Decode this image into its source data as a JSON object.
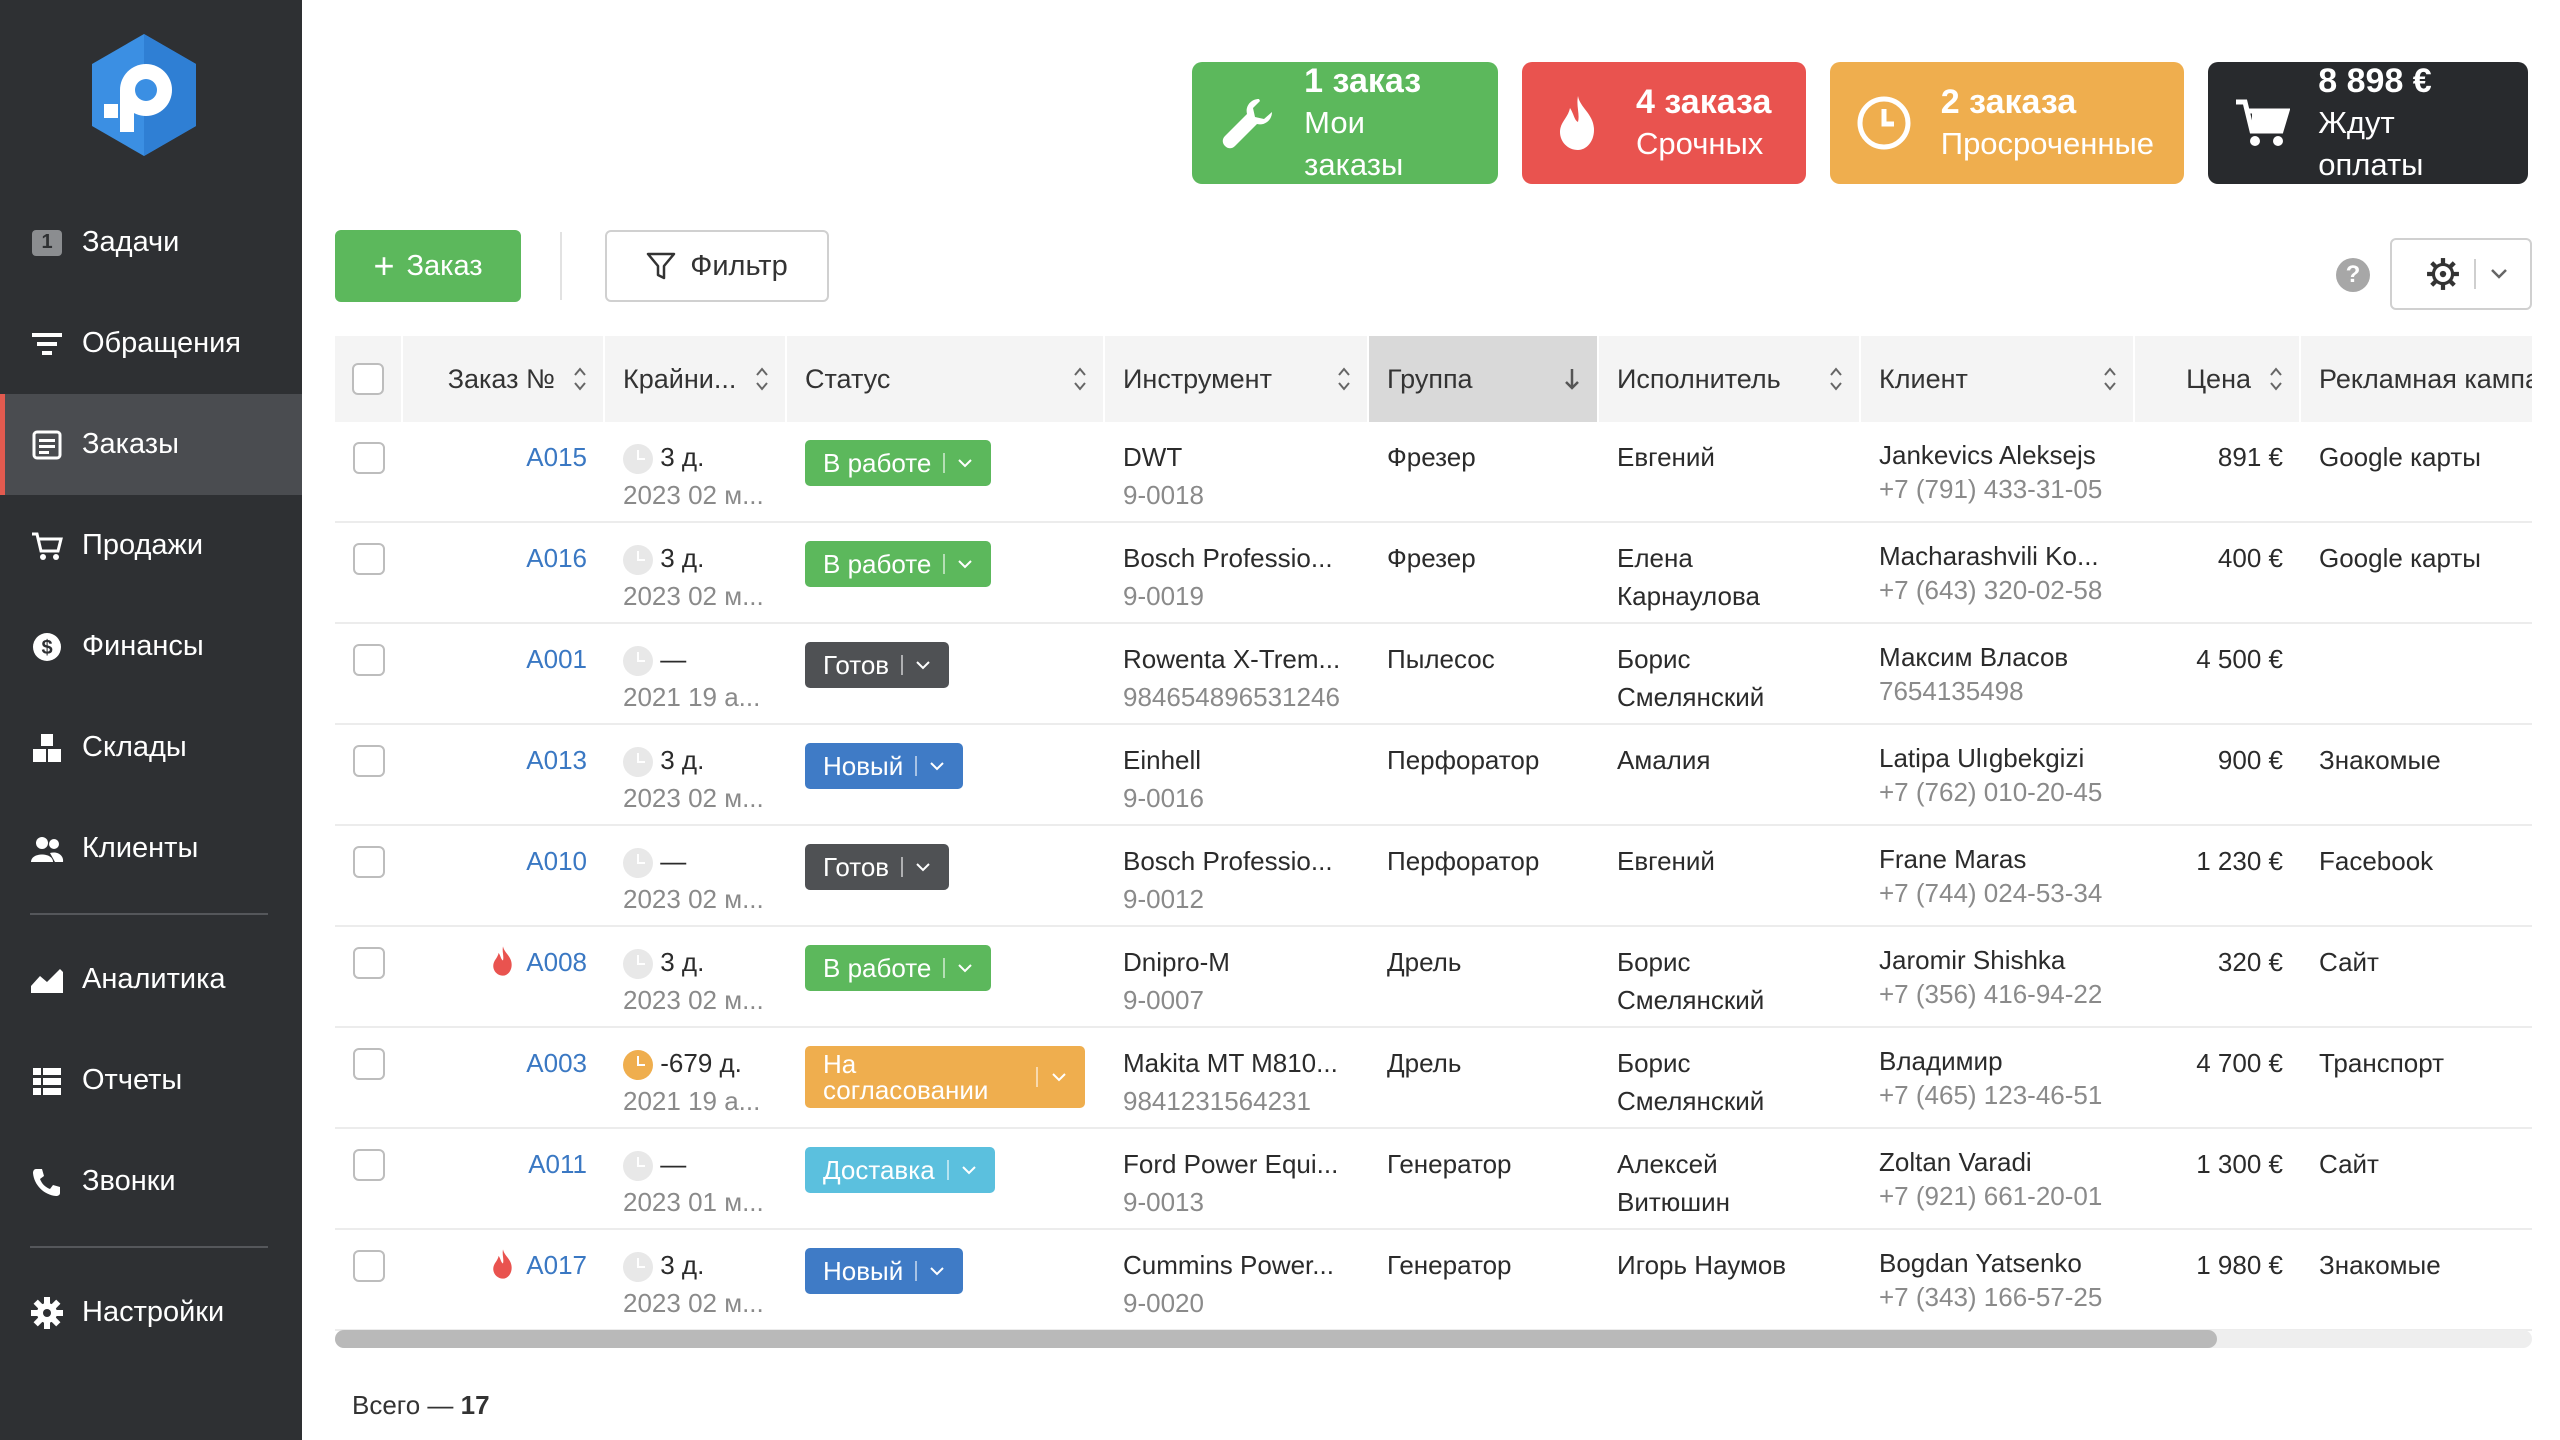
{
  "sidebar": {
    "items": [
      {
        "label": "Задачи",
        "badge": "1",
        "icon": "tasks-badge-icon"
      },
      {
        "label": "Обращения",
        "icon": "filter-lines-icon"
      },
      {
        "label": "Заказы",
        "icon": "orders-icon",
        "active": true
      },
      {
        "label": "Продажи",
        "icon": "cart-icon"
      },
      {
        "label": "Финансы",
        "icon": "dollar-icon"
      },
      {
        "label": "Склады",
        "icon": "boxes-icon"
      },
      {
        "label": "Клиенты",
        "icon": "users-icon"
      },
      {
        "label": "Аналитика",
        "icon": "chart-icon"
      },
      {
        "label": "Отчеты",
        "icon": "reports-icon"
      },
      {
        "label": "Звонки",
        "icon": "phone-icon"
      },
      {
        "label": "Настройки",
        "icon": "gear-icon"
      }
    ]
  },
  "cards": [
    {
      "title": "1 заказ",
      "sub": "Мои заказы",
      "color": "#5cb85c",
      "icon": "wrench-icon"
    },
    {
      "title": "4 заказа",
      "sub": "Срочных",
      "color": "#e9534f",
      "icon": "fire-icon"
    },
    {
      "title": "2 заказа",
      "sub": "Просроченные",
      "color": "#efae4e",
      "icon": "clock-icon"
    },
    {
      "title": "8 898 €",
      "sub": "Ждут оплаты",
      "color": "#282a2d",
      "icon": "cart-icon"
    }
  ],
  "toolbar": {
    "order_label": "Заказ",
    "filter_label": "Фильтр",
    "help_label": "?"
  },
  "table": {
    "headers": [
      "Заказ №",
      "Крайни...",
      "Статус",
      "Инструмент",
      "Группа",
      "Исполнитель",
      "Клиент",
      "Цена",
      "Рекламная кампа"
    ],
    "rows": [
      {
        "id": "A015",
        "urgent": false,
        "deadline": "3 д.",
        "deadline_warn": false,
        "date": "2023 02 м...",
        "status": "В работе",
        "status_type": "work",
        "tool": "DWT",
        "tool_sub": "9-0018",
        "group": "Фрезер",
        "exec": [
          "Евгений"
        ],
        "client": "Jankevics Aleksejs",
        "phone": "+7 (791) 433-31-05",
        "price": "891 €",
        "campaign": "Google карты"
      },
      {
        "id": "A016",
        "urgent": false,
        "deadline": "3 д.",
        "deadline_warn": false,
        "date": "2023 02 м...",
        "status": "В работе",
        "status_type": "work",
        "tool": "Bosch Professio...",
        "tool_sub": "9-0019",
        "group": "Фрезер",
        "exec": [
          "Елена",
          "Карнаулова"
        ],
        "client": "Macharashvili Ko...",
        "phone": "+7 (643) 320-02-58",
        "price": "400 €",
        "campaign": "Google карты"
      },
      {
        "id": "A001",
        "urgent": false,
        "deadline": "—",
        "deadline_warn": false,
        "date": "2021 19 а...",
        "status": "Готов",
        "status_type": "ready",
        "tool": "Rowenta X-Trem...",
        "tool_sub": "984654896531246",
        "group": "Пылесос",
        "exec": [
          "Борис",
          "Смелянский"
        ],
        "client": "Максим Власов",
        "phone": "7654135498",
        "price": "4 500 €",
        "campaign": ""
      },
      {
        "id": "A013",
        "urgent": false,
        "deadline": "3 д.",
        "deadline_warn": false,
        "date": "2023 02 м...",
        "status": "Новый",
        "status_type": "new",
        "tool": "Einhell",
        "tool_sub": "9-0016",
        "group": "Перфоратор",
        "exec": [
          "Амалия"
        ],
        "client": "Latipa Ulıgbekgizi",
        "phone": "+7 (762) 010-20-45",
        "price": "900 €",
        "campaign": "Знакомые"
      },
      {
        "id": "A010",
        "urgent": false,
        "deadline": "—",
        "deadline_warn": false,
        "date": "2023 02 м...",
        "status": "Готов",
        "status_type": "ready",
        "tool": "Bosch Professio...",
        "tool_sub": "9-0012",
        "group": "Перфоратор",
        "exec": [
          "Евгений"
        ],
        "client": "Frane Maras",
        "phone": "+7 (744) 024-53-34",
        "price": "1 230 €",
        "campaign": "Facebook"
      },
      {
        "id": "A008",
        "urgent": true,
        "deadline": "3 д.",
        "deadline_warn": false,
        "date": "2023 02 м...",
        "status": "В работе",
        "status_type": "work",
        "tool": "Dnipro-M",
        "tool_sub": "9-0007",
        "group": "Дрель",
        "exec": [
          "Борис",
          "Смелянский"
        ],
        "client": "Jaromir Shishka",
        "phone": "+7 (356) 416-94-22",
        "price": "320 €",
        "campaign": "Сайт"
      },
      {
        "id": "A003",
        "urgent": false,
        "deadline": "-679 д.",
        "deadline_warn": true,
        "date": "2021 19 а...",
        "status": "На согласовании",
        "status_type": "approve",
        "tool": "Makita MT M810...",
        "tool_sub": "9841231564231",
        "group": "Дрель",
        "exec": [
          "Борис",
          "Смелянский"
        ],
        "client": "Владимир",
        "phone": "+7 (465) 123-46-51",
        "price": "4 700 €",
        "campaign": "Транспорт"
      },
      {
        "id": "A011",
        "urgent": false,
        "deadline": "—",
        "deadline_warn": false,
        "date": "2023 01 м...",
        "status": "Доставка",
        "status_type": "deliv",
        "tool": "Ford Power Equi...",
        "tool_sub": "9-0013",
        "group": "Генератор",
        "exec": [
          "Алексей",
          "Витюшин"
        ],
        "client": "Zoltan Varadi",
        "phone": "+7 (921) 661-20-01",
        "price": "1 300 €",
        "campaign": "Сайт"
      },
      {
        "id": "A017",
        "urgent": true,
        "deadline": "3 д.",
        "deadline_warn": false,
        "date": "2023 02 м...",
        "status": "Новый",
        "status_type": "new",
        "tool": "Cummins Power...",
        "tool_sub": "9-0020",
        "group": "Генератор",
        "exec": [
          "Игорь Наумов"
        ],
        "client": "Bogdan Yatsenko",
        "phone": "+7 (343) 166-57-25",
        "price": "1 980 €",
        "campaign": "Знакомые"
      }
    ]
  },
  "footer": {
    "total_label": "Всего —",
    "total_value": "17"
  }
}
